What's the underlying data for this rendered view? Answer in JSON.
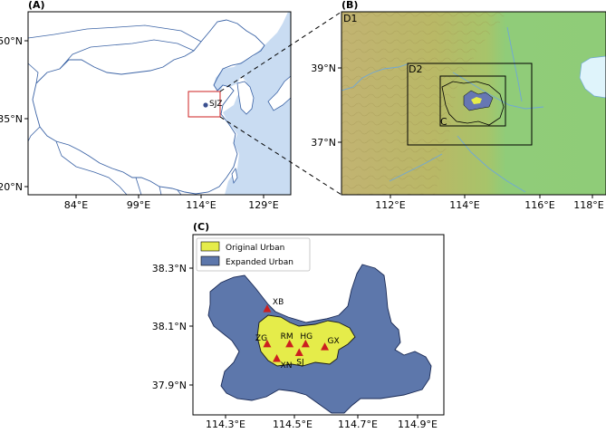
{
  "panels": {
    "a": {
      "label": "(A)",
      "lat_ticks": [
        "50°N",
        "35°N",
        "20°N"
      ],
      "lon_ticks": [
        "84°E",
        "99°E",
        "114°E",
        "129°E"
      ],
      "city_label": "SJZ",
      "colors": {
        "land": "#ffffff",
        "sea": "#c9dcf2",
        "border": "#3c64a6",
        "box": "#cc2222"
      }
    },
    "b": {
      "label": "(B)",
      "lat_ticks": [
        "39°N",
        "37°N"
      ],
      "lon_ticks": [
        "112°E",
        "114°E",
        "116°E",
        "118°E"
      ],
      "domain_labels": {
        "d1": "D1",
        "d2": "D2",
        "c": "C"
      },
      "colors": {
        "plain": "#8fcc78",
        "mountain": "#b5b566",
        "lake": "#dff4fb",
        "river": "#6fa7d8",
        "urban": "#6677b3"
      }
    },
    "c": {
      "label": "(C)",
      "lat_ticks": [
        "38.3°N",
        "38.1°N",
        "37.9°N"
      ],
      "lon_ticks": [
        "114.3°E",
        "114.5°E",
        "114.7°E",
        "114.9°E"
      ],
      "legend": [
        {
          "label": "Original Urban",
          "color": "#e5ec4a"
        },
        {
          "label": "Expanded Urban",
          "color": "#5d77ab"
        }
      ],
      "stations": [
        {
          "code": "XB",
          "lon": 114.43,
          "lat": 38.16
        },
        {
          "code": "ZG",
          "lon": 114.43,
          "lat": 38.04
        },
        {
          "code": "RM",
          "lon": 114.5,
          "lat": 38.04
        },
        {
          "code": "HG",
          "lon": 114.55,
          "lat": 38.04
        },
        {
          "code": "GX",
          "lon": 114.61,
          "lat": 38.03
        },
        {
          "code": "XN",
          "lon": 114.46,
          "lat": 37.99
        },
        {
          "code": "SJ",
          "lon": 114.53,
          "lat": 38.01
        }
      ],
      "colors": {
        "station": "#cc1f1f"
      }
    }
  }
}
